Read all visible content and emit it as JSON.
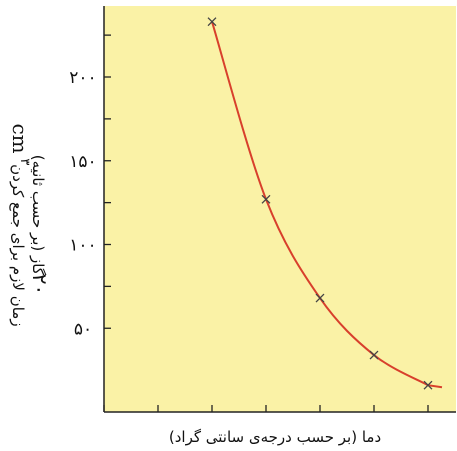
{
  "chart_data": {
    "type": "line",
    "title": "",
    "xlabel": "دما (بر حسب درجه‌ی سانتی گراد)",
    "ylabel_parts": {
      "line1": "زمان لازم برای جمع کردن",
      "volume_prefix": "۲۰",
      "unit": "cm",
      "exponent": "۳",
      "line2": "گاز (بر حسب ثانیه)"
    },
    "y_ticks": [
      {
        "value": 50,
        "label": "۵۰"
      },
      {
        "value": 100,
        "label": "۱۰۰"
      },
      {
        "value": 150,
        "label": "۱۵۰"
      },
      {
        "value": 200,
        "label": "۲۰۰"
      }
    ],
    "x_tick_count": 7,
    "y_minor_ticks": [
      75,
      125,
      175,
      225
    ],
    "ylim": [
      0,
      240
    ],
    "xlim": [
      0,
      6.5
    ],
    "series": [
      {
        "points": [
          {
            "x": 2,
            "y": 233
          },
          {
            "x": 3,
            "y": 127
          },
          {
            "x": 4,
            "y": 68
          },
          {
            "x": 5,
            "y": 34
          },
          {
            "x": 6,
            "y": 16
          }
        ]
      }
    ],
    "grid": false,
    "colors": {
      "plot_background": "#faf2a6",
      "curve": "#d8402c",
      "marker": "#444444",
      "axis": "#222222"
    }
  }
}
